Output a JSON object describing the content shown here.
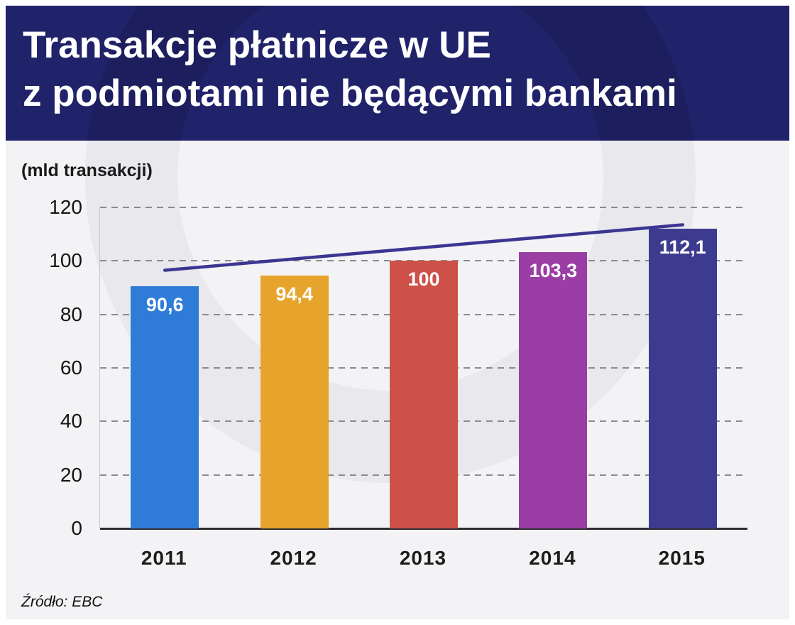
{
  "header": {
    "title_line1": "Transakcje płatnicze w UE",
    "title_line2": "z podmiotami nie będącymi bankami",
    "background": "#20236a",
    "text_color": "#ffffff"
  },
  "unit_label": "(mld transakcji)",
  "source": "Źródło: EBC",
  "chart_data": {
    "type": "bar",
    "title": "Transakcje płatnicze w UE z podmiotami nie będącymi bankami",
    "unit": "mld transakcji",
    "categories": [
      "2011",
      "2012",
      "2013",
      "2014",
      "2015"
    ],
    "values": [
      90.6,
      94.4,
      100,
      103.3,
      112.1
    ],
    "value_labels": [
      "90,6",
      "94,4",
      "100",
      "103,3",
      "112,1"
    ],
    "bar_colors": [
      "#2e7bd8",
      "#e7a42c",
      "#cd5148",
      "#9a3da4",
      "#3d3b8f"
    ],
    "xlabel": "",
    "ylabel": "(mld transakcji)",
    "ylim": [
      0,
      120
    ],
    "yticks": [
      0,
      20,
      40,
      60,
      80,
      100,
      120
    ],
    "grid": "horizontal-dashed",
    "legend": "none",
    "trend_line": {
      "color": "#3c3692",
      "start_category": "2011",
      "end_category": "2015",
      "start_value": 96.5,
      "end_value": 113.5
    },
    "source": "EBC"
  }
}
